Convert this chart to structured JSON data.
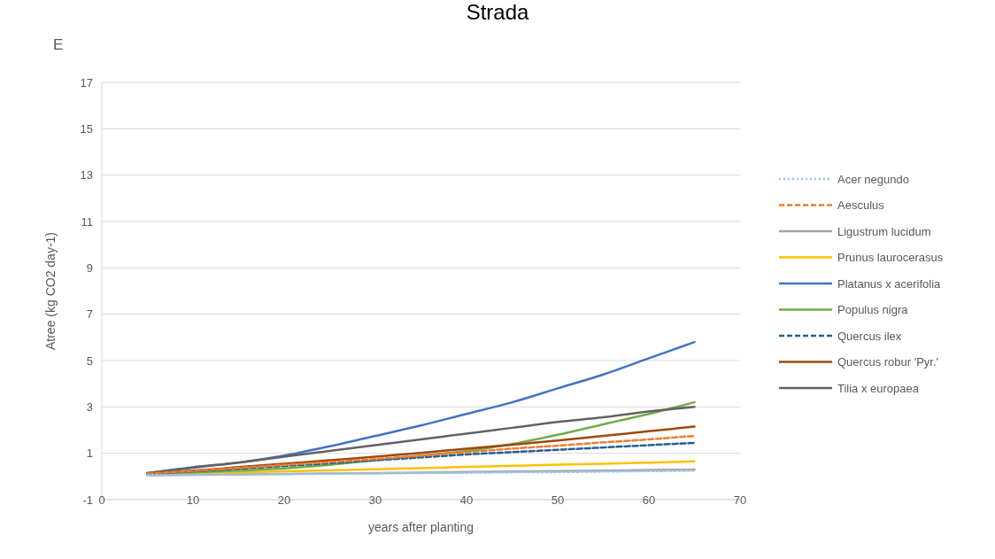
{
  "chart_data": {
    "type": "line",
    "title": "Strada",
    "annotations": [
      "E"
    ],
    "xlabel": "years after planting",
    "ylabel": "Atree (kg CO2 day-1)",
    "x": [
      5,
      10,
      15,
      20,
      25,
      30,
      35,
      40,
      45,
      50,
      55,
      60,
      65
    ],
    "xlim": [
      0,
      70
    ],
    "xticks": [
      0,
      10,
      20,
      30,
      40,
      50,
      60,
      70
    ],
    "ylim": [
      -1,
      17
    ],
    "yticks": [
      -1,
      1,
      3,
      5,
      7,
      9,
      11,
      13,
      15,
      17
    ],
    "grid": "y",
    "legend": "right",
    "marker": "none",
    "series": [
      {
        "name": "Acer negundo",
        "color": "#9dc3e6",
        "line_style": "dotted",
        "values": [
          0.06,
          0.08,
          0.09,
          0.1,
          0.12,
          0.13,
          0.15,
          0.16,
          0.18,
          0.19,
          0.21,
          0.23,
          0.25
        ]
      },
      {
        "name": "Aesculus",
        "color": "#ed7d31",
        "line_style": "dashed",
        "values": [
          0.12,
          0.24,
          0.37,
          0.5,
          0.62,
          0.75,
          0.9,
          1.05,
          1.2,
          1.33,
          1.47,
          1.6,
          1.75
        ]
      },
      {
        "name": "Ligustrum lucidum",
        "color": "#a5a5a5",
        "line_style": "solid",
        "values": [
          0.05,
          0.07,
          0.09,
          0.11,
          0.13,
          0.15,
          0.17,
          0.19,
          0.21,
          0.23,
          0.25,
          0.28,
          0.3
        ]
      },
      {
        "name": "Prunus laurocerasus",
        "color": "#ffc000",
        "line_style": "solid",
        "values": [
          0.08,
          0.13,
          0.17,
          0.22,
          0.26,
          0.31,
          0.36,
          0.41,
          0.46,
          0.51,
          0.55,
          0.6,
          0.65
        ]
      },
      {
        "name": "Platanus x acerifolia",
        "color": "#4472c4",
        "line_style": "solid",
        "values": [
          0.15,
          0.4,
          0.6,
          0.9,
          1.3,
          1.75,
          2.2,
          2.7,
          3.2,
          3.8,
          4.4,
          5.1,
          5.8
        ]
      },
      {
        "name": "Populus nigra",
        "color": "#70ad47",
        "line_style": "solid",
        "values": [
          0.1,
          0.17,
          0.25,
          0.35,
          0.5,
          0.7,
          0.9,
          1.1,
          1.4,
          1.8,
          2.25,
          2.7,
          3.2
        ]
      },
      {
        "name": "Quercus ilex",
        "color": "#255e91",
        "line_style": "dashed",
        "values": [
          0.1,
          0.22,
          0.33,
          0.45,
          0.57,
          0.7,
          0.82,
          0.95,
          1.05,
          1.15,
          1.25,
          1.35,
          1.45
        ]
      },
      {
        "name": "Quercus robur 'Pyr.'",
        "color": "#9e480e",
        "line_style": "solid",
        "values": [
          0.12,
          0.25,
          0.4,
          0.55,
          0.7,
          0.85,
          1.02,
          1.2,
          1.37,
          1.55,
          1.75,
          1.95,
          2.15
        ]
      },
      {
        "name": "Tilia x europaea",
        "color": "#636363",
        "line_style": "solid",
        "values": [
          0.15,
          0.38,
          0.6,
          0.85,
          1.1,
          1.35,
          1.6,
          1.85,
          2.1,
          2.35,
          2.55,
          2.8,
          3.0
        ]
      }
    ]
  }
}
